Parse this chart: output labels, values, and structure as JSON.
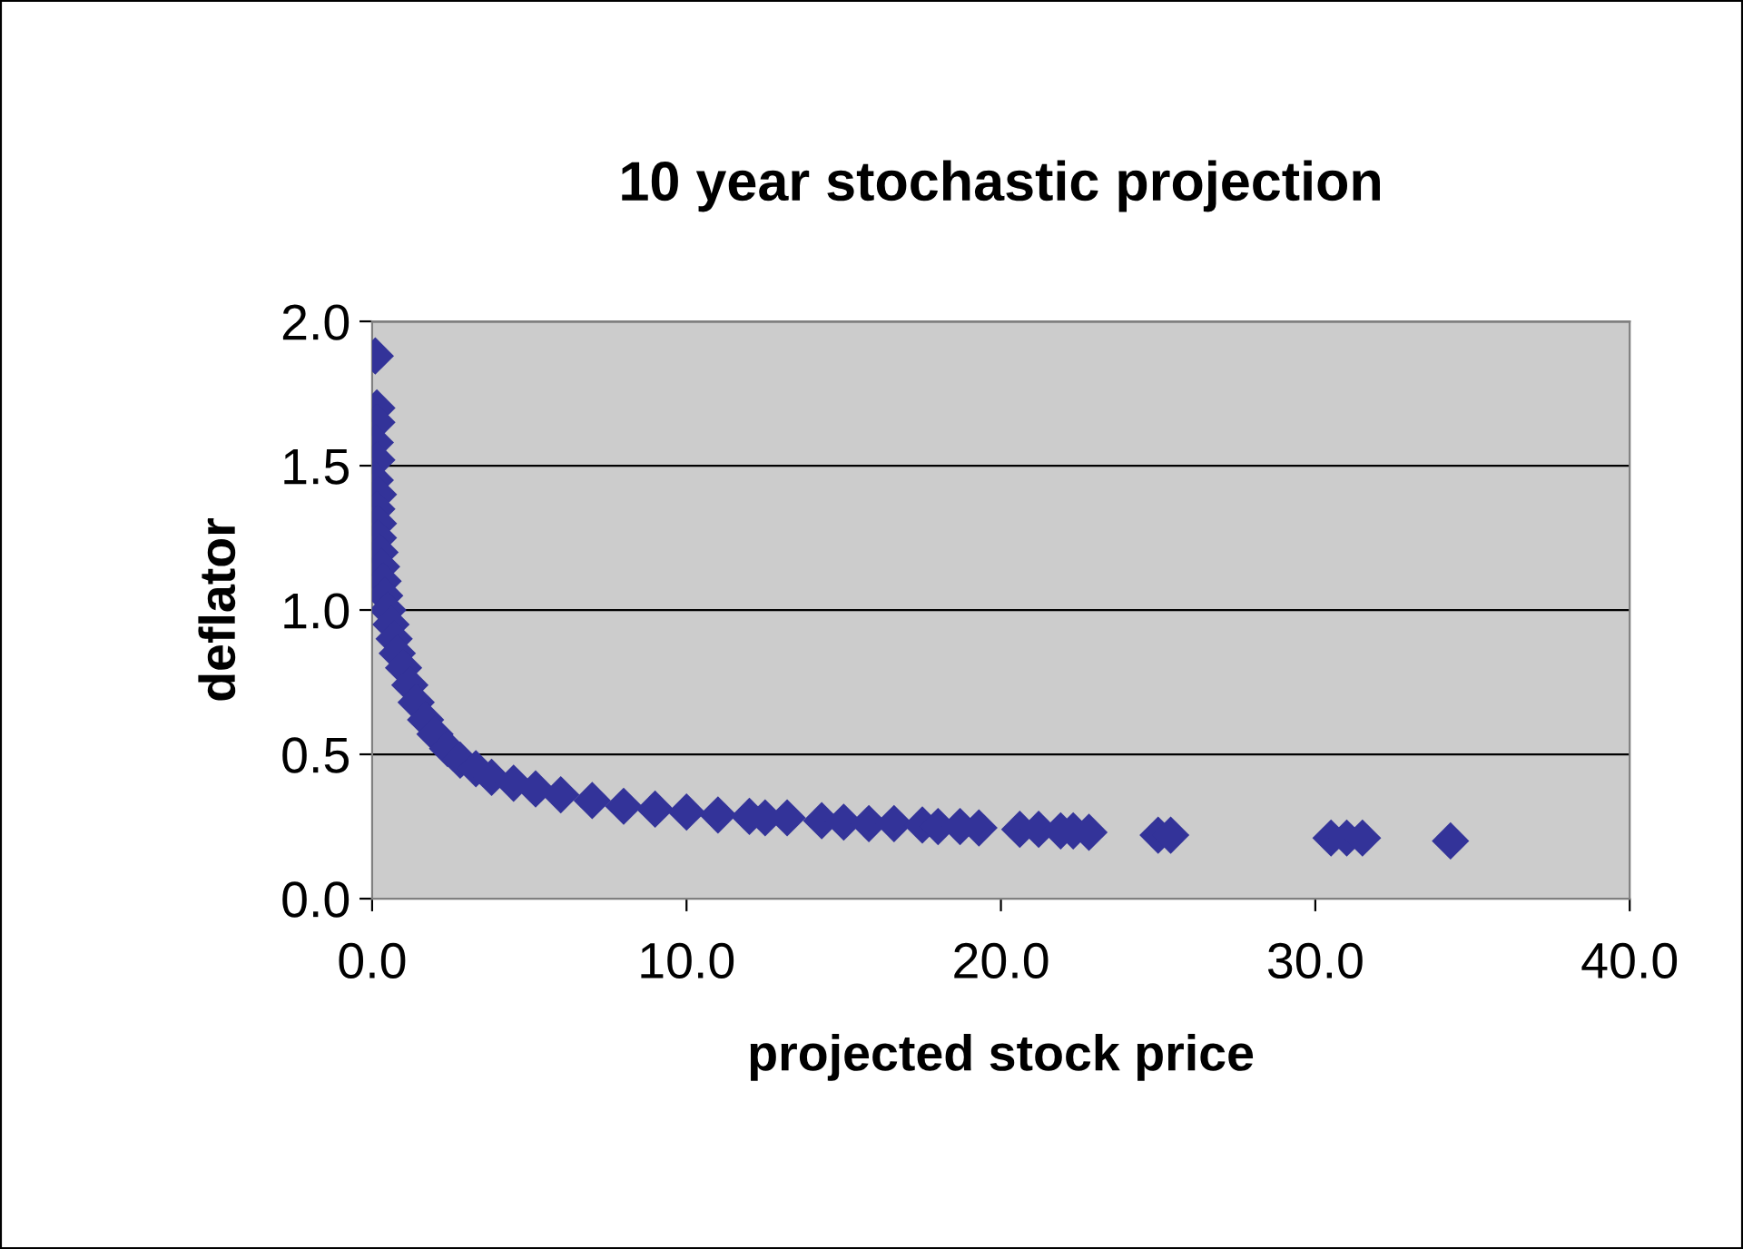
{
  "chart_data": {
    "type": "scatter",
    "title": "10 year stochastic projection",
    "xlabel": "projected stock price",
    "ylabel": "deflator",
    "series": [
      {
        "color": "#333399",
        "x": [
          0.1,
          0.15,
          0.15,
          0.1,
          0.15,
          0.1,
          0.2,
          0.15,
          0.2,
          0.2,
          0.25,
          0.3,
          0.35,
          0.4,
          0.5,
          0.6,
          0.7,
          0.8,
          1.0,
          1.2,
          1.4,
          1.7,
          2.0,
          2.4,
          2.8,
          3.3,
          3.8,
          4.5,
          5.2,
          6.0,
          7.0,
          8.0,
          9.0,
          10.0,
          11.0,
          12.0,
          12.5,
          13.2,
          14.3,
          15.0,
          15.8,
          16.6,
          17.5,
          18.0,
          18.7,
          19.3,
          20.6,
          21.2,
          21.9,
          22.3,
          22.8,
          25.0,
          25.4,
          30.5,
          31.0,
          31.5,
          34.3
        ],
        "values": [
          1.88,
          1.7,
          1.65,
          1.58,
          1.52,
          1.45,
          1.4,
          1.35,
          1.3,
          1.25,
          1.2,
          1.15,
          1.1,
          1.05,
          1.0,
          0.95,
          0.9,
          0.85,
          0.8,
          0.74,
          0.68,
          0.62,
          0.57,
          0.52,
          0.48,
          0.45,
          0.42,
          0.4,
          0.38,
          0.36,
          0.34,
          0.32,
          0.31,
          0.3,
          0.29,
          0.285,
          0.28,
          0.28,
          0.27,
          0.265,
          0.26,
          0.26,
          0.255,
          0.25,
          0.25,
          0.245,
          0.24,
          0.24,
          0.235,
          0.235,
          0.23,
          0.22,
          0.22,
          0.21,
          0.21,
          0.21,
          0.2
        ]
      }
    ],
    "xlim": [
      0,
      40
    ],
    "xticks": [
      {
        "value": 0,
        "label": "0.0"
      },
      {
        "value": 10,
        "label": "10.0"
      },
      {
        "value": 20,
        "label": "20.0"
      },
      {
        "value": 30,
        "label": "30.0"
      },
      {
        "value": 40,
        "label": "40.0"
      }
    ],
    "ylim": [
      0,
      2
    ],
    "yticks": [
      {
        "value": 0,
        "label": "0.0"
      },
      {
        "value": 0.5,
        "label": "0.5"
      },
      {
        "value": 1,
        "label": "1.0"
      },
      {
        "value": 1.5,
        "label": "1.5"
      },
      {
        "value": 2,
        "label": "2.0"
      }
    ],
    "grid": "y",
    "marker": "diamond",
    "legend": false
  }
}
